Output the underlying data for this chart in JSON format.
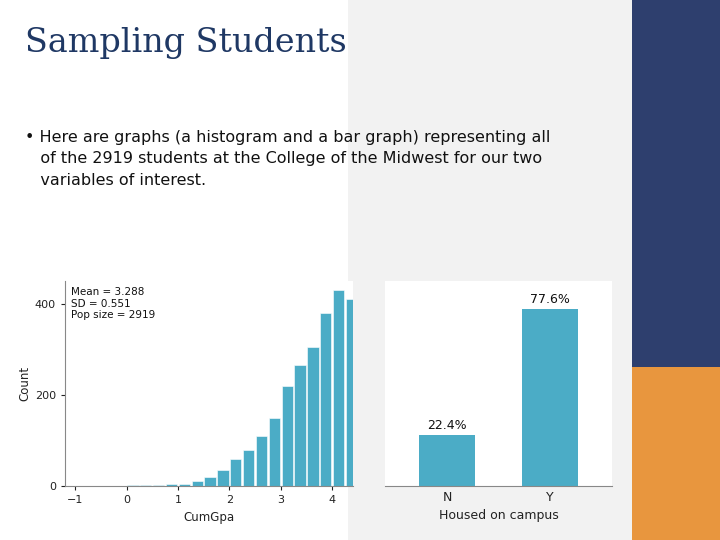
{
  "title": "Sampling Students",
  "title_color": "#1f3864",
  "slide_bg": "#ffffff",
  "right_panel_color": "#2e3f6e",
  "orange_panel_color": "#e8963e",
  "hist_mean": 3.288,
  "hist_sd": 0.551,
  "hist_pop_size": 2919,
  "hist_bar_color": "#4bacc6",
  "hist_xlabel": "CumGpa",
  "hist_ylabel": "Count",
  "hist_xlim": [
    -1.2,
    4.4
  ],
  "hist_ylim": [
    0,
    450
  ],
  "hist_yticks": [
    0,
    200,
    400
  ],
  "hist_xticks": [
    -1,
    0,
    1,
    2,
    3,
    4
  ],
  "bar_categories": [
    "N",
    "Y"
  ],
  "bar_values": [
    22.4,
    77.6
  ],
  "bar_labels": [
    "22.4%",
    "77.6%"
  ],
  "bar_color": "#4bacc6",
  "bar_xlabel": "Housed on campus",
  "bar_ylim": [
    0,
    90
  ],
  "gpa_bins": [
    -1.0,
    -0.75,
    -0.5,
    -0.25,
    0.0,
    0.25,
    0.5,
    0.75,
    1.0,
    1.25,
    1.5,
    1.75,
    2.0,
    2.25,
    2.5,
    2.75,
    3.0,
    3.25,
    3.5,
    3.75,
    4.0,
    4.25
  ],
  "gpa_counts": [
    0,
    0,
    0,
    1,
    3,
    2,
    2,
    4,
    5,
    10,
    20,
    35,
    60,
    80,
    110,
    150,
    220,
    265,
    305,
    380,
    430,
    410
  ],
  "bullet_line1": "• Here are graphs (a histogram and a bar graph) representing all of the 2919 students at the",
  "bullet_line2": "  College of the Midwest for our two variables of",
  "bullet_line3": "  interest."
}
